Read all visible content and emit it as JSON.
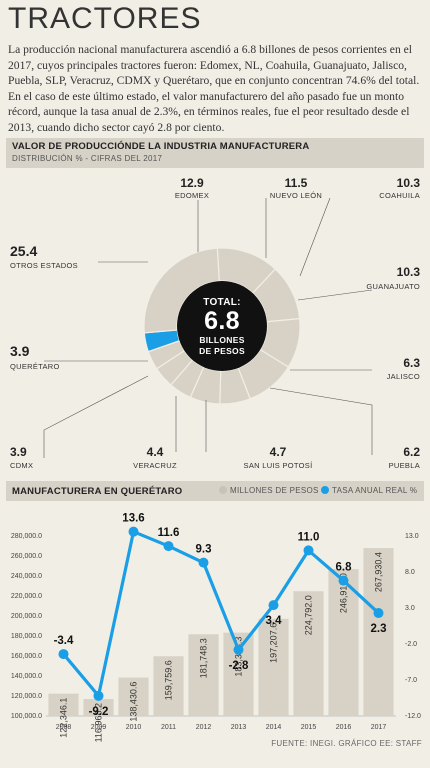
{
  "title": "TRACTORES",
  "intro": "La producción nacional manufacturera ascendió a 6.8 billones de pesos corrientes en el 2017, cuyos principales tractores fueron: Edomex, NL, Coahuila, Guanajuato, Jalisco, Puebla, SLP, Veracruz, CDMX y Querétaro, que en conjunto concentran 74.6% del total. En el caso de este último estado, el valor manufacturero del año pasado fue un monto récord, aunque la tasa anual de 2.3%, en términos reales, fue el peor resultado desde el 2013, cuando dicho sector cayó 2.8 por ciento.",
  "source": "FUENTE: INEGI. GRÁFICO EE: STAFF",
  "chart_data": [
    {
      "type": "pie",
      "title": "VALOR DE PRODUCCIÓNDE LA INDUSTRIA MANUFACTURERA",
      "subtitle": "DISTRIBUCIÓN % - CIFRAS DEL 2017",
      "center": {
        "label": "TOTAL:",
        "value": "6.8",
        "unit_line1": "BILLONES",
        "unit_line2": "DE PESOS"
      },
      "slices": [
        {
          "name": "EDOMEX",
          "value": 12.9
        },
        {
          "name": "NUEVO LEÓN",
          "value": 11.5
        },
        {
          "name": "COAHUILA",
          "value": 10.3
        },
        {
          "name": "GUANAJUATO",
          "value": 10.3
        },
        {
          "name": "JALISCO",
          "value": 6.3
        },
        {
          "name": "PUEBLA",
          "value": 6.2
        },
        {
          "name": "SAN LUIS POTOSÍ",
          "value": 4.7
        },
        {
          "name": "VERACRUZ",
          "value": 4.4
        },
        {
          "name": "CDMX",
          "value": 3.9
        },
        {
          "name": "QUERÉTARO",
          "value": 3.9
        },
        {
          "name": "OTROS ESTADOS",
          "value": 25.4
        }
      ],
      "highlight": "QUERÉTARO",
      "colors": {
        "slice": "#d8d2c6",
        "highlight": "#1a9ee6",
        "center": "#111111",
        "stroke": "#f1eee6"
      }
    },
    {
      "type": "bar",
      "title": "MANUFACTURERA EN QUERÉTARO",
      "legend_bar": "MILLONES DE PESOS",
      "legend_line": "TASA ANUAL REAL %",
      "categories": [
        "2008",
        "2009",
        "2010",
        "2011",
        "2012",
        "2013",
        "2014",
        "2015",
        "2016",
        "2017"
      ],
      "series": [
        {
          "name": "MILLONES DE PESOS",
          "type": "bar",
          "axis": "left",
          "values": [
            122346.1,
            116968.2,
            138430.6,
            159759.6,
            181748.3,
            183373.3,
            197207.6,
            224792.0,
            246910.0,
            267930.4
          ],
          "labels": [
            "122,346.1",
            "116,968.2",
            "138,430.6",
            "159,759.6",
            "181,748.3",
            "183,373.3",
            "197,207.6",
            "224,792.0",
            "246,910.0",
            "267,930.4"
          ]
        },
        {
          "name": "TASA ANUAL REAL %",
          "type": "line",
          "axis": "right",
          "values": [
            -3.4,
            -9.2,
            13.6,
            11.6,
            9.3,
            -2.8,
            3.4,
            11.0,
            6.8,
            2.3
          ],
          "labels": [
            "-3.4",
            "-9.2",
            "13.6",
            "11.6",
            "9.3",
            "-2.8",
            "3.4",
            "11.0",
            "6.8",
            "2.3"
          ]
        }
      ],
      "left_ticks": [
        "280,000.0",
        "260,000.0",
        "240,000.0",
        "220,000.0",
        "200,000.0",
        "180,000.0",
        "160,000.0",
        "140,000.0",
        "120,000.0",
        "100,000.0"
      ],
      "left_tick_values": [
        280000,
        260000,
        240000,
        220000,
        200000,
        180000,
        160000,
        140000,
        120000,
        100000
      ],
      "right_ticks": [
        "13.0",
        "8.0",
        "3.0",
        "-2.0",
        "-7.0",
        "-12.0"
      ],
      "right_tick_values": [
        13,
        8,
        3,
        -2,
        -7,
        -12
      ],
      "ylim_left": [
        100000,
        280000
      ],
      "ylim_right": [
        -12,
        13
      ],
      "colors": {
        "bar": "#d8d2c6",
        "line": "#1a9ee6"
      }
    }
  ]
}
